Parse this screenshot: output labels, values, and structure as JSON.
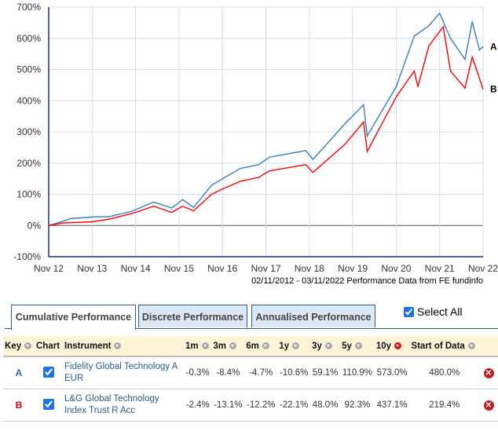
{
  "chart_data": {
    "type": "line",
    "ylim": [
      -100,
      700
    ],
    "yticks": [
      "-100%",
      "0%",
      "100%",
      "200%",
      "300%",
      "400%",
      "500%",
      "600%",
      "700%"
    ],
    "ytick_values": [
      -100,
      0,
      100,
      200,
      300,
      400,
      500,
      600,
      700
    ],
    "xticks": [
      "Nov 12",
      "Nov 13",
      "Nov 14",
      "Nov 15",
      "Nov 16",
      "Nov 17",
      "Nov 18",
      "Nov 19",
      "Nov 20",
      "Nov 21",
      "Nov 22"
    ],
    "xtick_dates": [
      "2012-11",
      "2013-11",
      "2014-11",
      "2015-11",
      "2016-11",
      "2017-11",
      "2018-11",
      "2019-11",
      "2020-11",
      "2021-11",
      "2022-11"
    ],
    "grid": true,
    "source_note": "02/11/2012 - 03/11/2022 Performance Data from FE fundinfo",
    "series": [
      {
        "name": "A",
        "color": "#3a7fc1",
        "x": [
          "2012-11",
          "2013-03",
          "2013-05",
          "2013-11",
          "2014-04",
          "2014-10",
          "2015-04",
          "2015-09",
          "2015-12",
          "2016-03",
          "2016-08",
          "2016-11",
          "2017-04",
          "2017-09",
          "2017-12",
          "2018-10",
          "2018-12",
          "2019-09",
          "2020-02",
          "2020-03",
          "2020-11",
          "2021-04",
          "2021-08",
          "2021-11",
          "2022-02",
          "2022-06",
          "2022-08",
          "2022-10",
          "2022-11"
        ],
        "y": [
          0,
          14,
          22,
          27,
          29,
          46,
          75,
          56,
          83,
          58,
          129,
          150,
          183,
          195,
          219,
          240,
          212,
          328,
          387,
          287,
          445,
          607,
          640,
          680,
          600,
          532,
          653,
          562,
          573
        ]
      },
      {
        "name": "B",
        "color": "#ff0000",
        "x": [
          "2012-11",
          "2013-03",
          "2013-11",
          "2014-04",
          "2014-11",
          "2015-04",
          "2015-09",
          "2015-12",
          "2016-03",
          "2016-08",
          "2016-11",
          "2017-04",
          "2017-09",
          "2017-12",
          "2018-10",
          "2018-12",
          "2019-09",
          "2020-02",
          "2020-03",
          "2020-11",
          "2021-04",
          "2021-05",
          "2021-08",
          "2021-12",
          "2022-02",
          "2022-06",
          "2022-08",
          "2022-11"
        ],
        "y": [
          0,
          8,
          12,
          21,
          42,
          62,
          42,
          62,
          47,
          100,
          117,
          142,
          154,
          175,
          195,
          170,
          262,
          332,
          237,
          412,
          495,
          445,
          575,
          637,
          495,
          440,
          540,
          437
        ]
      }
    ]
  },
  "tabs": [
    "Cumulative Performance",
    "Discrete Performance",
    "Annualised Performance"
  ],
  "select_all": "Select All",
  "table": {
    "headers": [
      "Key",
      "Chart",
      "Instrument",
      "1m",
      "3m",
      "6m",
      "1y",
      "3y",
      "5y",
      "10y",
      "Start of Data"
    ],
    "rows": [
      {
        "key": "A",
        "key_color": "#2b6cb0",
        "instrument": "Fidelity Global Technology A EUR",
        "values": [
          "-0.3%",
          "-8.4%",
          "-4.7%",
          "-10.6%",
          "59.1%",
          "110.9%",
          "573.0%",
          "480.0%"
        ]
      },
      {
        "key": "B",
        "key_color": "#e00000",
        "instrument": "L&G Global Technology Index Trust R Acc",
        "values": [
          "-2.4%",
          "-13.1%",
          "-12.2%",
          "-22.1%",
          "48.0%",
          "92.3%",
          "437.1%",
          "219.4%"
        ]
      }
    ]
  }
}
